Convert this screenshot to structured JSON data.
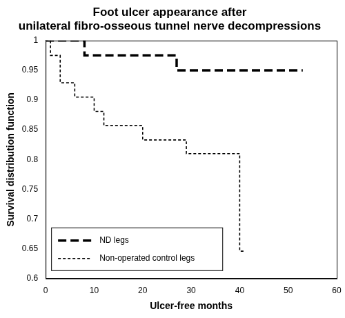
{
  "chart_data": {
    "type": "step",
    "title": [
      "Foot ulcer appearance after",
      "unilateral fibro-osseous tunnel nerve decompressions"
    ],
    "x_label": "Ulcer-free months",
    "y_label": "Survival distribution function",
    "xlim": [
      0,
      60
    ],
    "xticks": [
      0,
      10,
      20,
      30,
      40,
      50,
      60
    ],
    "ylim": [
      0.6,
      1
    ],
    "yticks": [
      0.6,
      0.65,
      0.7,
      0.75,
      0.8,
      0.85,
      0.9,
      0.95,
      1
    ],
    "grid": false,
    "legend": "lower left",
    "series": [
      {
        "name": "ND legs",
        "color": "#000000",
        "line_style": "dashed",
        "x": [
          0,
          8,
          27,
          53
        ],
        "values": [
          1,
          0.975,
          0.95,
          0.95
        ]
      },
      {
        "name": "Non-operated control legs",
        "color": "#000000",
        "line_style": "dotted",
        "x": [
          0,
          1,
          3,
          6,
          10,
          12,
          20,
          29,
          40,
          41
        ],
        "values": [
          1,
          0.975,
          0.929,
          0.905,
          0.881,
          0.857,
          0.833,
          0.81,
          0.646,
          0.646
        ]
      }
    ]
  }
}
